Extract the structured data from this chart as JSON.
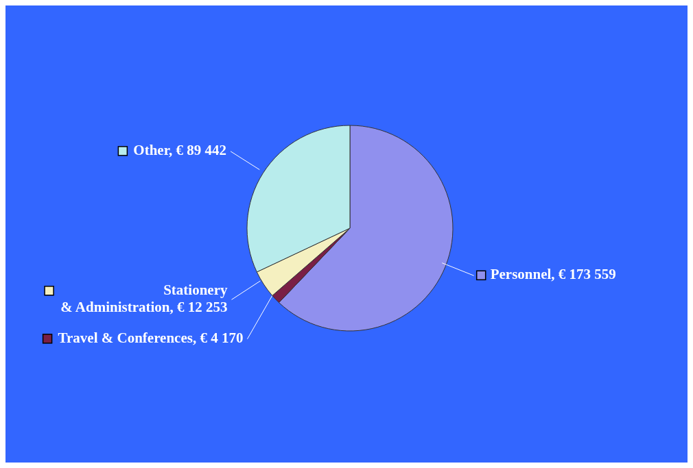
{
  "chart_data": {
    "type": "pie",
    "categories": [
      "Personnel",
      "Travel & Conferences",
      "Stationery & Administration",
      "Other"
    ],
    "values": [
      173559,
      4170,
      12253,
      89442
    ],
    "value_labels": [
      "€ 173 559",
      "€ 4 170",
      "€ 12 253",
      "€ 89 442"
    ],
    "colors": [
      "#9090ee",
      "#7a1f45",
      "#f5f0c0",
      "#b8ecec"
    ],
    "legend": "left"
  }
}
